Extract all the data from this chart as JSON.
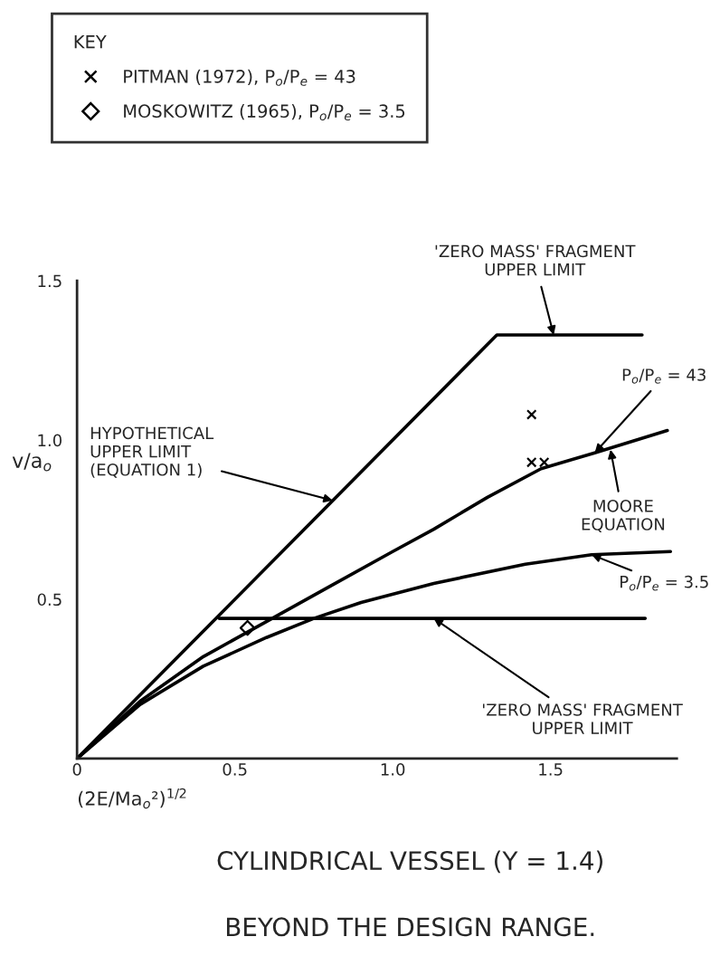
{
  "chart_data": {
    "type": "line",
    "title": "CYLINDRICAL VESSEL (Y = 1.4)",
    "subtitle": "BEYOND THE DESIGN RANGE.",
    "xlabel": "(2E/Ma$_{o}$²)$^{1/2}$",
    "ylabel": "v/a$_{o}$",
    "legend_title": "KEY",
    "xlim": [
      0,
      1.9
    ],
    "ylim": [
      0,
      1.5
    ],
    "xticks": [
      0,
      0.5,
      {
        "value": 1.0,
        "label": "1.0"
      },
      1.5
    ],
    "yticks": [
      {
        "value": 0.5,
        "label": "0.5"
      },
      {
        "value": 1.0,
        "label": "1.0"
      },
      {
        "value": 1.5,
        "label": "1.5"
      }
    ],
    "grid": false,
    "legend": "top left",
    "series": [
      {
        "color": "#000000",
        "x": [
          0,
          1.33,
          1.79
        ],
        "values": [
          0,
          1.33,
          1.33
        ]
      },
      {
        "color": "#000000",
        "x": [
          0.45,
          1.8
        ],
        "values": [
          0.44,
          0.44
        ]
      },
      {
        "color": "#000000",
        "x": [
          0,
          0.2,
          0.4,
          0.6,
          0.8,
          1.0,
          1.13,
          1.3,
          1.47,
          1.64,
          1.87
        ],
        "values": [
          0,
          0.18,
          0.32,
          0.43,
          0.54,
          0.65,
          0.72,
          0.82,
          0.91,
          0.96,
          1.03
        ]
      },
      {
        "color": "#000000",
        "x": [
          0,
          0.2,
          0.4,
          0.6,
          0.75,
          0.9,
          1.13,
          1.42,
          1.63,
          1.88
        ],
        "values": [
          0,
          0.17,
          0.29,
          0.38,
          0.44,
          0.49,
          0.55,
          0.61,
          0.64,
          0.65
        ]
      },
      {
        "type": "scatter",
        "name": "PITMAN (1972), P$_{o}$/P$_{e}$ = 43",
        "color": "#000000",
        "marker": "cross",
        "x": [
          1.44,
          1.44,
          1.48
        ],
        "values": [
          1.08,
          0.93,
          0.93
        ]
      },
      {
        "type": "scatter",
        "name": "MOSKOWITZ (1965), P$_{o}$/P$_{e}$ = 3.5",
        "color": "#000000",
        "marker": "diamond",
        "x": [
          0.54
        ],
        "values": [
          0.41
        ]
      }
    ],
    "annotations": [
      {
        "text": "'ZERO MASS' FRAGMENT\nUPPER LIMIT",
        "x": 1.51,
        "y": 1.33
      },
      {
        "text": "P$_{o}$/P$_{e}$ = 43",
        "x": 1.64,
        "y": 0.96
      },
      {
        "text": "MOORE\nEQUATION",
        "x": 1.69,
        "y": 0.97
      },
      {
        "text": "P$_{o}$/P$_{e}$ = 3.5",
        "x": 1.63,
        "y": 0.64
      },
      {
        "text": "'ZERO MASS' FRAGMENT\nUPPER LIMIT",
        "x": 1.13,
        "y": 0.44
      },
      {
        "text": "HYPOTHETICAL\nUPPER LIMIT\n(EQUATION 1)",
        "x": 0.81,
        "y": 0.81
      }
    ]
  }
}
